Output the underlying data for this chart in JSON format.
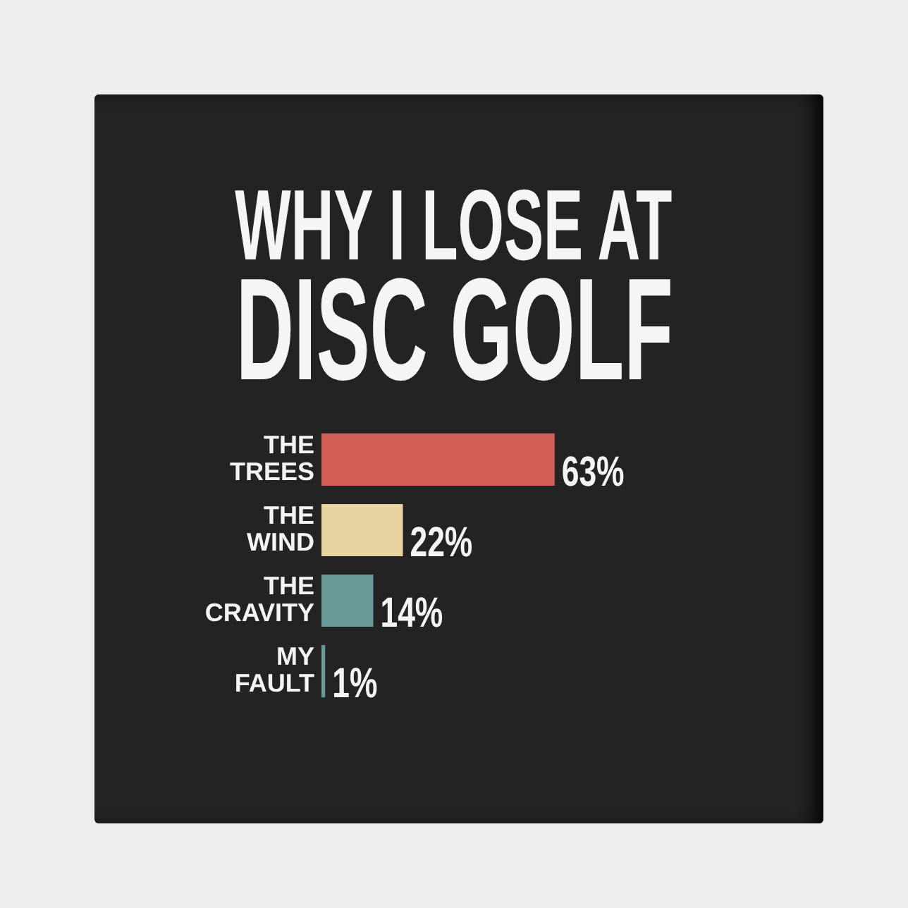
{
  "chart_data": {
    "type": "bar",
    "orientation": "horizontal",
    "title": "WHY I LOSE AT\nDISC GOLF",
    "categories": [
      "THE TREES",
      "THE WIND",
      "THE CRAVITY",
      "MY FAULT"
    ],
    "values": [
      63,
      22,
      14,
      1
    ],
    "colors": [
      "#d15e54",
      "#e8d4a0",
      "#6a9b98",
      "#6a9b98"
    ],
    "value_labels": [
      "63%",
      "22%",
      "14%",
      "1%"
    ],
    "tick_labels": "y"
  }
}
